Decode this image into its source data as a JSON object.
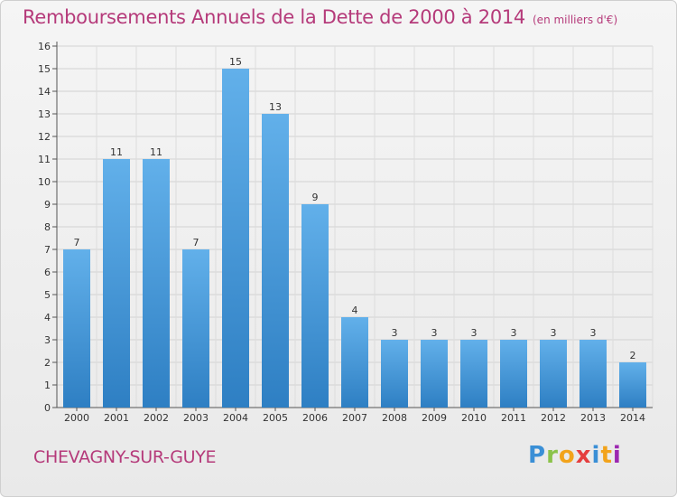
{
  "header": {
    "title": "Remboursements Annuels de la Dette de 2000 à 2014",
    "subtitle": "(en milliers d'€)"
  },
  "footer": {
    "town": "CHEVAGNY-SUR-GUYE",
    "logo_letters": [
      "P",
      "r",
      "o",
      "x",
      "i",
      "t",
      "i"
    ]
  },
  "chart_data": {
    "type": "bar",
    "title": "Remboursements Annuels de la Dette de 2000 à 2014",
    "subtitle": "(en milliers d'€)",
    "categories": [
      "2000",
      "2001",
      "2002",
      "2003",
      "2004",
      "2005",
      "2006",
      "2007",
      "2008",
      "2009",
      "2010",
      "2011",
      "2012",
      "2013",
      "2014"
    ],
    "values": [
      7,
      11,
      11,
      7,
      15,
      13,
      9,
      4,
      3,
      3,
      3,
      3,
      3,
      3,
      2
    ],
    "ylim": [
      0,
      16
    ],
    "yticks": [
      0,
      1,
      2,
      3,
      4,
      5,
      6,
      7,
      8,
      9,
      10,
      11,
      12,
      13,
      14,
      15,
      16
    ],
    "grid": true,
    "bar_color": "#4a9be0"
  }
}
